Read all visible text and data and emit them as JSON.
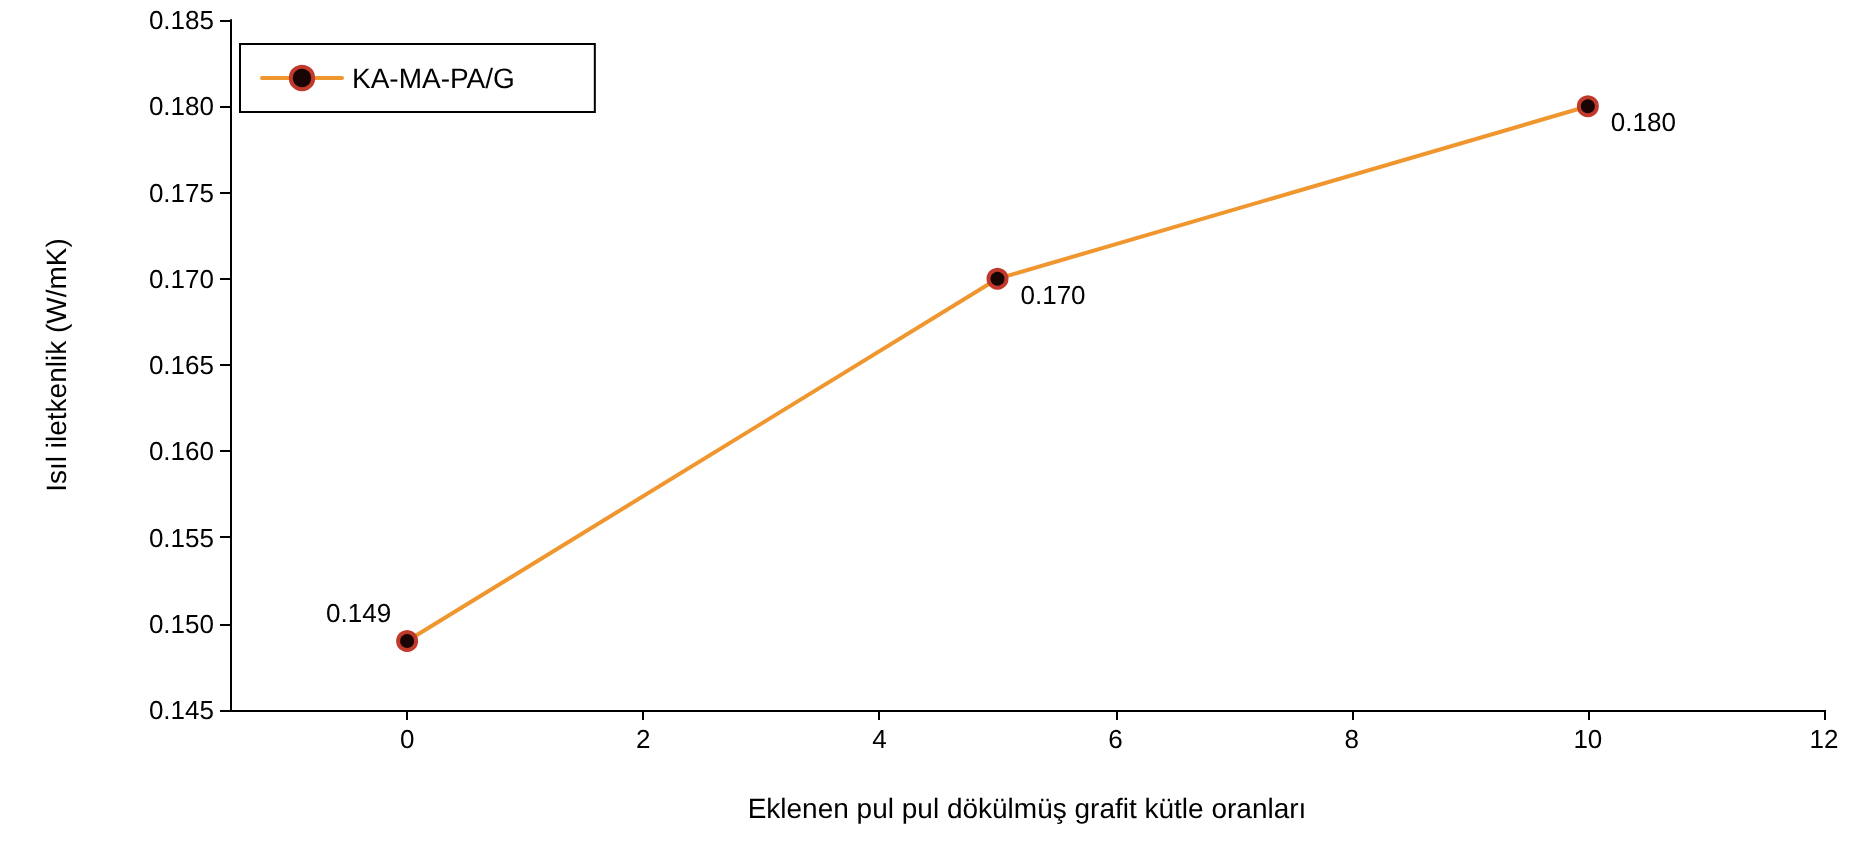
{
  "chart_data": {
    "type": "line",
    "xlabel": "Eklenen pul pul dökülmüş grafit kütle oranları",
    "ylabel": "Isıl iletkenlik (W/mK)",
    "x": [
      0,
      5,
      10
    ],
    "series": [
      {
        "name": "KA-MA-PA/G",
        "color": "#f0962e",
        "values": [
          0.149,
          0.17,
          0.18
        ],
        "value_labels": [
          "0.149",
          "0.170",
          "0.180"
        ]
      }
    ],
    "xlim": [
      -1.5,
      12
    ],
    "xticks": [
      0,
      2,
      4,
      6,
      8,
      10,
      12
    ],
    "ylim": [
      0.145,
      0.185
    ],
    "yticks": [
      0.145,
      {
        "value": 0.15,
        "label": "0.150"
      },
      0.155,
      {
        "value": 0.16,
        "label": "0.160"
      },
      0.165,
      {
        "value": 0.17,
        "label": "0.170"
      },
      0.175,
      {
        "value": 0.18,
        "label": "0.180"
      },
      0.185
    ],
    "grid": false,
    "legend": "top left",
    "marker": "circle",
    "line_style": "solid"
  }
}
